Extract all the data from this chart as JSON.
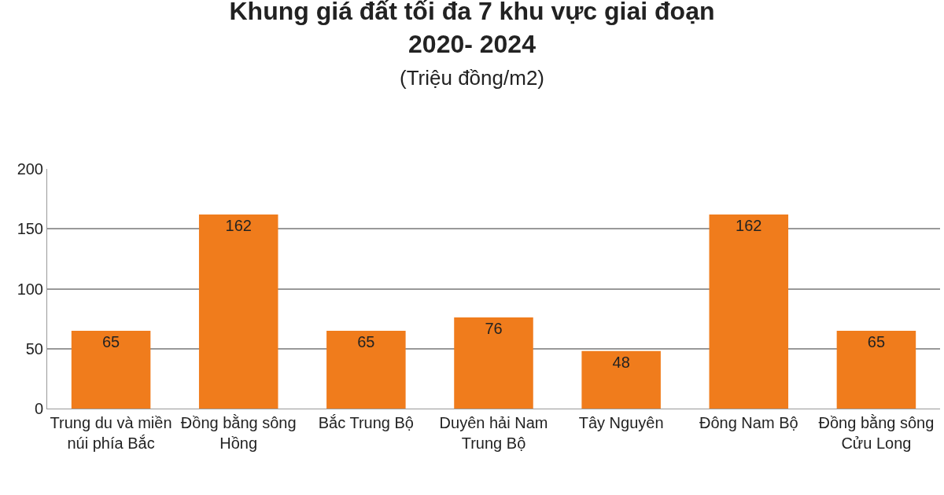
{
  "chart_data": {
    "type": "bar",
    "title": "Khung giá đất tối đa 7 khu vực giai đoạn 2020- 2024",
    "subtitle": "(Triệu đồng/m2)",
    "categories": [
      "Trung du và miền núi phía Bắc",
      "Đồng bằng sông Hồng",
      "Bắc Trung Bộ",
      "Duyên hải Nam Trung Bộ",
      "Tây Nguyên",
      "Đông Nam Bộ",
      "Đồng bằng sông Cửu Long"
    ],
    "values": [
      65,
      162,
      65,
      76,
      48,
      162,
      65
    ],
    "color": "#f07c1c",
    "ylim": [
      0,
      200
    ],
    "yticks": [
      0,
      50,
      100,
      150,
      200
    ],
    "grid": "y",
    "data_labels": true
  }
}
